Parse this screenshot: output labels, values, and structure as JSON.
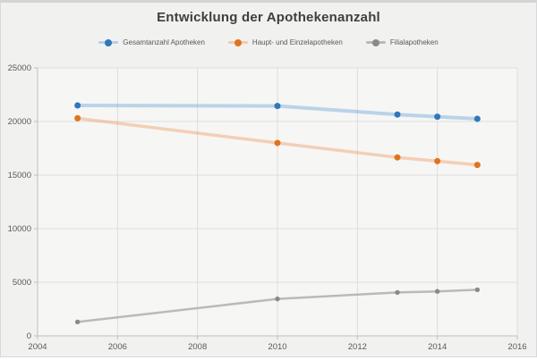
{
  "chart_data": {
    "type": "line",
    "title": "Entwicklung der Apothekenanzahl",
    "x": [
      2005,
      2010,
      2013,
      2014,
      2015
    ],
    "series": [
      {
        "name": "Gesamtanzahl Apotheken",
        "values": [
          21500,
          21450,
          20650,
          20450,
          20250
        ],
        "marker_color": "#3077BB",
        "line_color": "rgba(91,155,213,0.38)",
        "line_width": 4,
        "marker_radius": 3.5
      },
      {
        "name": "Haupt- und Einzelapotheken",
        "values": [
          20300,
          18000,
          16650,
          16300,
          15950
        ],
        "marker_color": "#E0741E",
        "line_color": "rgba(237,125,49,0.32)",
        "line_width": 3.5,
        "marker_radius": 3.5
      },
      {
        "name": "Filialapotheken",
        "values": [
          1300,
          3450,
          4050,
          4150,
          4300
        ],
        "marker_color": "#8A8A8A",
        "line_color": "rgba(165,165,165,0.75)",
        "line_width": 2.5,
        "marker_radius": 2.7
      }
    ],
    "xlabel": "",
    "ylabel": "",
    "xlim": [
      2004,
      2016
    ],
    "ylim": [
      0,
      25000
    ],
    "x_ticks": [
      2004,
      2006,
      2008,
      2010,
      2012,
      2014,
      2016
    ],
    "y_ticks": [
      0,
      5000,
      10000,
      15000,
      20000,
      25000
    ],
    "grid": true,
    "legend_position": "top",
    "style": {
      "page_background": "#f1f1f0",
      "plot_background": "#f6f6f5",
      "grid_color": "#dddddc",
      "axis_color": "#c0c0c0",
      "tick_label_color": "#595959",
      "title_color": "#3f3f3f",
      "frame_border_color": "#d4d4d4"
    }
  }
}
